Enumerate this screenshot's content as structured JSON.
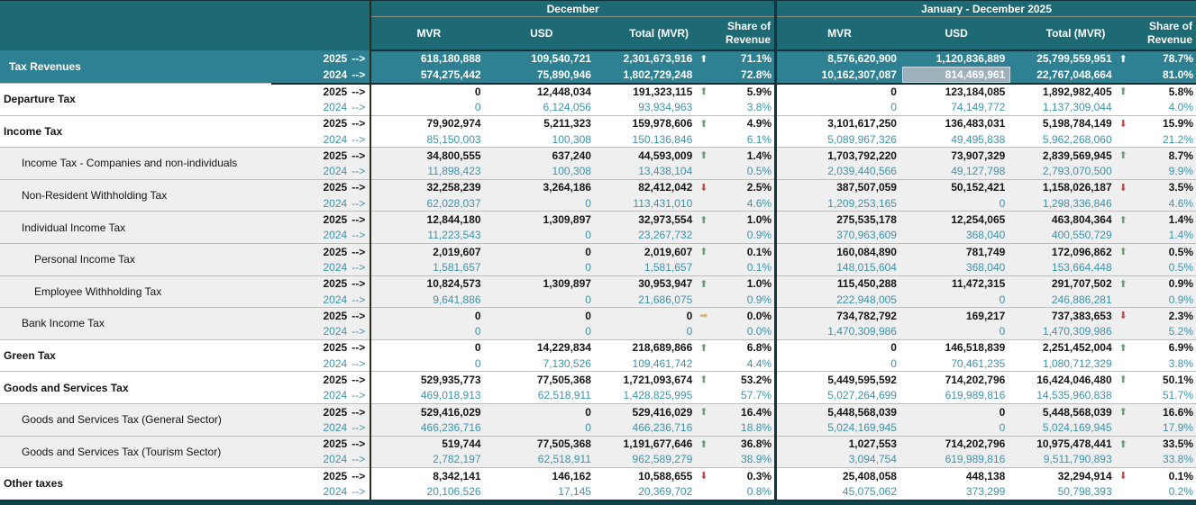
{
  "header": {
    "december_label": "December",
    "jan_dec_label": "January - December 2025",
    "col_mvr": "MVR",
    "col_usd": "USD",
    "col_total": "Total (MVR)",
    "col_share": "Share of Revenue"
  },
  "year_arrow": "-->",
  "colors": {
    "header_teal": "#1d6a75",
    "total_row_teal": "#2e8192",
    "year_2024_text": "#3e93ab",
    "sub_row_gray": "#efefef",
    "arrow_up_green": "#69a075",
    "arrow_down_red": "#c2504a",
    "arrow_flat_gold": "#d9b36c",
    "selected_cell": "#9cb1ba"
  },
  "rows": [
    {
      "label": "Tax Revenues",
      "indent": 0,
      "variant": "total",
      "lines": [
        {
          "year": "2025",
          "dec": {
            "mvr": "618,180,888",
            "usd": "109,540,721",
            "total": "2,301,673,916",
            "arrow": "up",
            "share": "71.1%"
          },
          "jan": {
            "mvr": "8,576,620,900",
            "usd": "1,120,836,889",
            "total": "25,799,559,951",
            "arrow": "up",
            "share": "78.7%"
          }
        },
        {
          "year": "2024",
          "dec": {
            "mvr": "574,275,442",
            "usd": "75,890,946",
            "total": "1,802,729,248",
            "share": "72.8%"
          },
          "jan": {
            "mvr": "10,162,307,087",
            "usd": "814,469,961",
            "usd_selected": true,
            "total": "22,767,048,664",
            "share": "81.0%"
          }
        }
      ]
    },
    {
      "label": "Departure Tax",
      "indent": 0,
      "variant": "cat",
      "lines": [
        {
          "year": "2025",
          "dec": {
            "mvr": "0",
            "usd": "12,448,034",
            "total": "191,323,115",
            "arrow": "up",
            "share": "5.9%"
          },
          "jan": {
            "mvr": "0",
            "usd": "123,184,085",
            "total": "1,892,982,405",
            "arrow": "up",
            "share": "5.8%"
          }
        },
        {
          "year": "2024",
          "dec": {
            "mvr": "0",
            "usd": "6,124,056",
            "total": "93,934,963",
            "share": "3.8%"
          },
          "jan": {
            "mvr": "0",
            "usd": "74,149,772",
            "total": "1,137,309,044",
            "share": "4.0%"
          }
        }
      ]
    },
    {
      "label": "Income Tax",
      "indent": 0,
      "variant": "cat",
      "lines": [
        {
          "year": "2025",
          "dec": {
            "mvr": "79,902,974",
            "usd": "5,211,323",
            "total": "159,978,606",
            "arrow": "up",
            "share": "4.9%"
          },
          "jan": {
            "mvr": "3,101,617,250",
            "usd": "136,483,031",
            "total": "5,198,784,149",
            "arrow": "down",
            "share": "15.9%"
          }
        },
        {
          "year": "2024",
          "dec": {
            "mvr": "85,150,003",
            "usd": "100,308",
            "total": "150,136,846",
            "share": "6.1%"
          },
          "jan": {
            "mvr": "5,089,967,326",
            "usd": "49,495,838",
            "total": "5,962,268,060",
            "share": "21.2%"
          }
        }
      ]
    },
    {
      "label": "Income Tax - Companies and non-individuals",
      "indent": 1,
      "variant": "sub",
      "lines": [
        {
          "year": "2025",
          "dec": {
            "mvr": "34,800,555",
            "usd": "637,240",
            "total": "44,593,009",
            "arrow": "up",
            "share": "1.4%"
          },
          "jan": {
            "mvr": "1,703,792,220",
            "usd": "73,907,329",
            "total": "2,839,569,945",
            "arrow": "up",
            "share": "8.7%"
          }
        },
        {
          "year": "2024",
          "dec": {
            "mvr": "11,898,423",
            "usd": "100,308",
            "total": "13,438,104",
            "share": "0.5%"
          },
          "jan": {
            "mvr": "2,039,440,566",
            "usd": "49,127,798",
            "total": "2,793,070,500",
            "share": "9.9%"
          }
        }
      ]
    },
    {
      "label": "Non-Resident Withholding Tax",
      "indent": 1,
      "variant": "sub",
      "lines": [
        {
          "year": "2025",
          "dec": {
            "mvr": "32,258,239",
            "usd": "3,264,186",
            "total": "82,412,042",
            "arrow": "down",
            "share": "2.5%"
          },
          "jan": {
            "mvr": "387,507,059",
            "usd": "50,152,421",
            "total": "1,158,026,187",
            "arrow": "down",
            "share": "3.5%"
          }
        },
        {
          "year": "2024",
          "dec": {
            "mvr": "62,028,037",
            "usd": "0",
            "total": "113,431,010",
            "share": "4.6%"
          },
          "jan": {
            "mvr": "1,209,253,165",
            "usd": "0",
            "total": "1,298,336,846",
            "share": "4.6%"
          }
        }
      ]
    },
    {
      "label": "Individual Income Tax",
      "indent": 1,
      "variant": "sub",
      "lines": [
        {
          "year": "2025",
          "dec": {
            "mvr": "12,844,180",
            "usd": "1,309,897",
            "total": "32,973,554",
            "arrow": "up",
            "share": "1.0%"
          },
          "jan": {
            "mvr": "275,535,178",
            "usd": "12,254,065",
            "total": "463,804,364",
            "arrow": "up",
            "share": "1.4%"
          }
        },
        {
          "year": "2024",
          "dec": {
            "mvr": "11,223,543",
            "usd": "0",
            "total": "23,267,732",
            "share": "0.9%"
          },
          "jan": {
            "mvr": "370,963,609",
            "usd": "368,040",
            "total": "400,550,729",
            "share": "1.4%"
          }
        }
      ]
    },
    {
      "label": "Personal Income Tax",
      "indent": 2,
      "variant": "sub",
      "lines": [
        {
          "year": "2025",
          "dec": {
            "mvr": "2,019,607",
            "usd": "0",
            "total": "2,019,607",
            "arrow": "up",
            "share": "0.1%"
          },
          "jan": {
            "mvr": "160,084,890",
            "usd": "781,749",
            "total": "172,096,862",
            "arrow": "up",
            "share": "0.5%"
          }
        },
        {
          "year": "2024",
          "dec": {
            "mvr": "1,581,657",
            "usd": "0",
            "total": "1,581,657",
            "share": "0.1%"
          },
          "jan": {
            "mvr": "148,015,604",
            "usd": "368,040",
            "total": "153,664,448",
            "share": "0.5%"
          }
        }
      ]
    },
    {
      "label": "Employee Withholding Tax",
      "indent": 2,
      "variant": "sub",
      "lines": [
        {
          "year": "2025",
          "dec": {
            "mvr": "10,824,573",
            "usd": "1,309,897",
            "total": "30,953,947",
            "arrow": "up",
            "share": "1.0%"
          },
          "jan": {
            "mvr": "115,450,288",
            "usd": "11,472,315",
            "total": "291,707,502",
            "arrow": "up",
            "share": "0.9%"
          }
        },
        {
          "year": "2024",
          "dec": {
            "mvr": "9,641,886",
            "usd": "0",
            "total": "21,686,075",
            "share": "0.9%"
          },
          "jan": {
            "mvr": "222,948,005",
            "usd": "0",
            "total": "246,886,281",
            "share": "0.9%"
          }
        }
      ]
    },
    {
      "label": "Bank Income Tax",
      "indent": 1,
      "variant": "sub",
      "lines": [
        {
          "year": "2025",
          "dec": {
            "mvr": "0",
            "usd": "0",
            "total": "0",
            "arrow": "right",
            "share": "0.0%"
          },
          "jan": {
            "mvr": "734,782,792",
            "usd": "169,217",
            "total": "737,383,653",
            "arrow": "down",
            "share": "2.3%"
          }
        },
        {
          "year": "2024",
          "dec": {
            "mvr": "0",
            "usd": "0",
            "total": "0",
            "share": "0.0%"
          },
          "jan": {
            "mvr": "1,470,309,986",
            "usd": "0",
            "total": "1,470,309,986",
            "share": "5.2%"
          }
        }
      ]
    },
    {
      "label": "Green Tax",
      "indent": 0,
      "variant": "cat",
      "lines": [
        {
          "year": "2025",
          "dec": {
            "mvr": "0",
            "usd": "14,229,834",
            "total": "218,689,866",
            "arrow": "up",
            "share": "6.8%"
          },
          "jan": {
            "mvr": "0",
            "usd": "146,518,839",
            "total": "2,251,452,004",
            "arrow": "up",
            "share": "6.9%"
          }
        },
        {
          "year": "2024",
          "dec": {
            "mvr": "0",
            "usd": "7,130,526",
            "total": "109,461,742",
            "share": "4.4%"
          },
          "jan": {
            "mvr": "0",
            "usd": "70,461,235",
            "total": "1,080,712,329",
            "share": "3.8%"
          }
        }
      ]
    },
    {
      "label": "Goods and Services Tax",
      "indent": 0,
      "variant": "cat",
      "lines": [
        {
          "year": "2025",
          "dec": {
            "mvr": "529,935,773",
            "usd": "77,505,368",
            "total": "1,721,093,674",
            "arrow": "up",
            "share": "53.2%"
          },
          "jan": {
            "mvr": "5,449,595,592",
            "usd": "714,202,796",
            "total": "16,424,046,480",
            "arrow": "up",
            "share": "50.1%"
          }
        },
        {
          "year": "2024",
          "dec": {
            "mvr": "469,018,913",
            "usd": "62,518,911",
            "total": "1,428,825,995",
            "share": "57.7%"
          },
          "jan": {
            "mvr": "5,027,264,699",
            "usd": "619,989,816",
            "total": "14,535,960,838",
            "share": "51.7%"
          }
        }
      ]
    },
    {
      "label": "Goods and Services Tax (General Sector)",
      "indent": 1,
      "variant": "sub",
      "lines": [
        {
          "year": "2025",
          "dec": {
            "mvr": "529,416,029",
            "usd": "0",
            "total": "529,416,029",
            "arrow": "up",
            "share": "16.4%"
          },
          "jan": {
            "mvr": "5,448,568,039",
            "usd": "0",
            "total": "5,448,568,039",
            "arrow": "up",
            "share": "16.6%"
          }
        },
        {
          "year": "2024",
          "dec": {
            "mvr": "466,236,716",
            "usd": "0",
            "total": "466,236,716",
            "share": "18.8%"
          },
          "jan": {
            "mvr": "5,024,169,945",
            "usd": "0",
            "total": "5,024,169,945",
            "share": "17.9%"
          }
        }
      ]
    },
    {
      "label": "Goods and Services Tax (Tourism Sector)",
      "indent": 1,
      "variant": "sub",
      "lines": [
        {
          "year": "2025",
          "dec": {
            "mvr": "519,744",
            "usd": "77,505,368",
            "total": "1,191,677,646",
            "arrow": "up",
            "share": "36.8%"
          },
          "jan": {
            "mvr": "1,027,553",
            "usd": "714,202,796",
            "total": "10,975,478,441",
            "arrow": "up",
            "share": "33.5%"
          }
        },
        {
          "year": "2024",
          "dec": {
            "mvr": "2,782,197",
            "usd": "62,518,911",
            "total": "962,589,279",
            "share": "38.9%"
          },
          "jan": {
            "mvr": "3,094,754",
            "usd": "619,989,816",
            "total": "9,511,790,893",
            "share": "33.8%"
          }
        }
      ]
    },
    {
      "label": "Other taxes",
      "indent": 0,
      "variant": "cat",
      "lines": [
        {
          "year": "2025",
          "dec": {
            "mvr": "8,342,141",
            "usd": "146,162",
            "total": "10,588,655",
            "arrow": "down",
            "share": "0.3%"
          },
          "jan": {
            "mvr": "25,408,058",
            "usd": "448,138",
            "total": "32,294,914",
            "arrow": "down",
            "share": "0.1%"
          }
        },
        {
          "year": "2024",
          "dec": {
            "mvr": "20,106,526",
            "usd": "17,145",
            "total": "20,369,702",
            "share": "0.8%"
          },
          "jan": {
            "mvr": "45,075,062",
            "usd": "373,299",
            "total": "50,798,393",
            "share": "0.2%"
          }
        }
      ]
    }
  ]
}
